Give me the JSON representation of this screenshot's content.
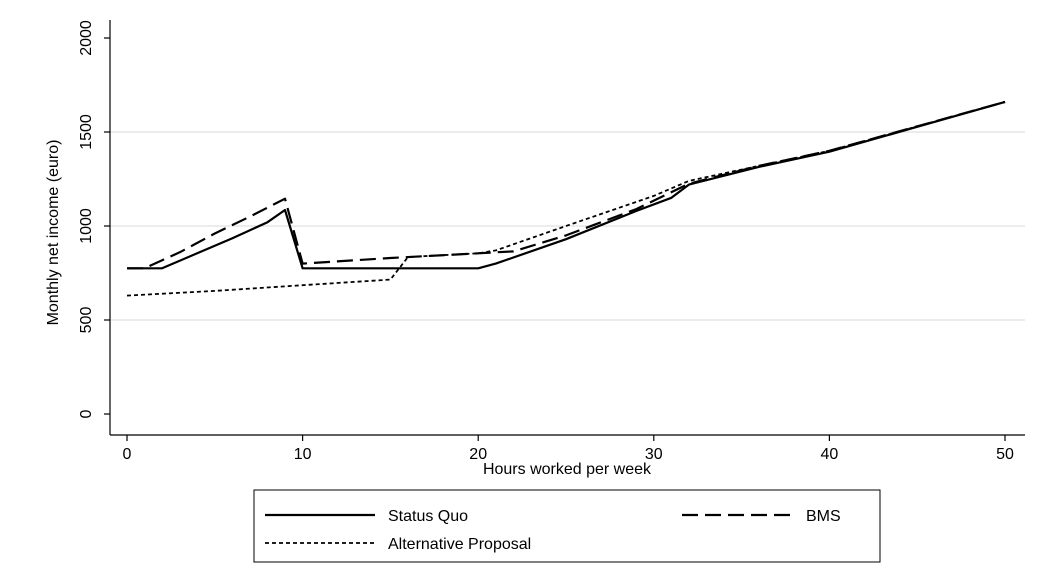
{
  "chart_data": {
    "type": "line",
    "title": "",
    "xlabel": "Hours worked per week",
    "ylabel": "Monthly net income (euro)",
    "xlim": [
      -1,
      52
    ],
    "ylim": [
      -50,
      2100
    ],
    "x_ticks": [
      "0",
      "10",
      "20",
      "30",
      "40",
      "50"
    ],
    "y_ticks": [
      "0",
      "500",
      "1000",
      "1500",
      "2000"
    ],
    "grid": "horizontal",
    "legend_position": "bottom",
    "series": [
      {
        "name": "Status Quo",
        "style": "solid",
        "points": [
          [
            0,
            775
          ],
          [
            2,
            775
          ],
          [
            4,
            855
          ],
          [
            6,
            935
          ],
          [
            8,
            1020
          ],
          [
            9,
            1085
          ],
          [
            10,
            775
          ],
          [
            20,
            775
          ],
          [
            21,
            800
          ],
          [
            25,
            930
          ],
          [
            29,
            1080
          ],
          [
            31,
            1150
          ],
          [
            32,
            1220
          ],
          [
            36,
            1315
          ],
          [
            40,
            1395
          ],
          [
            50,
            1660
          ]
        ]
      },
      {
        "name": "BMS",
        "style": "dashed",
        "points": [
          [
            0,
            775
          ],
          [
            1,
            775
          ],
          [
            3,
            860
          ],
          [
            5,
            960
          ],
          [
            7,
            1050
          ],
          [
            9,
            1145
          ],
          [
            10,
            800
          ],
          [
            15,
            830
          ],
          [
            20,
            855
          ],
          [
            21,
            860
          ],
          [
            22,
            865
          ],
          [
            25,
            950
          ],
          [
            29,
            1090
          ],
          [
            32,
            1225
          ],
          [
            36,
            1320
          ],
          [
            40,
            1400
          ],
          [
            50,
            1660
          ]
        ]
      },
      {
        "name": "Alternative Proposal",
        "style": "dotted",
        "points": [
          [
            0,
            630
          ],
          [
            5,
            655
          ],
          [
            10,
            685
          ],
          [
            15,
            715
          ],
          [
            16,
            835
          ],
          [
            20,
            855
          ],
          [
            21,
            870
          ],
          [
            25,
            1000
          ],
          [
            30,
            1160
          ],
          [
            32,
            1240
          ],
          [
            36,
            1320
          ],
          [
            40,
            1400
          ],
          [
            50,
            1660
          ]
        ]
      }
    ]
  }
}
